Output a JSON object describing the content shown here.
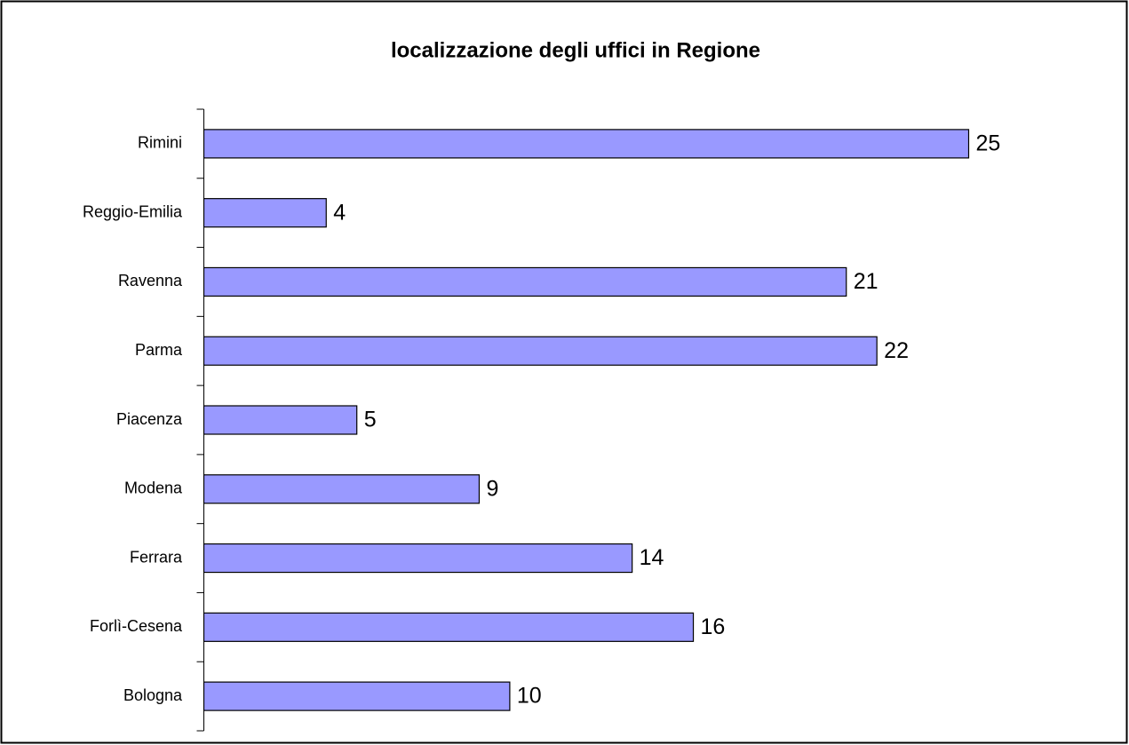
{
  "chart_data": {
    "type": "barh",
    "title": "localizzazione degli uffici in Regione",
    "categories": [
      "Bologna",
      "Forlì-Cesena",
      "Ferrara",
      "Modena",
      "Piacenza",
      "Parma",
      "Ravenna",
      "Reggio-Emilia",
      "Rimini"
    ],
    "values": [
      10,
      16,
      14,
      9,
      5,
      22,
      21,
      4,
      25
    ],
    "color": "#9999ff"
  }
}
